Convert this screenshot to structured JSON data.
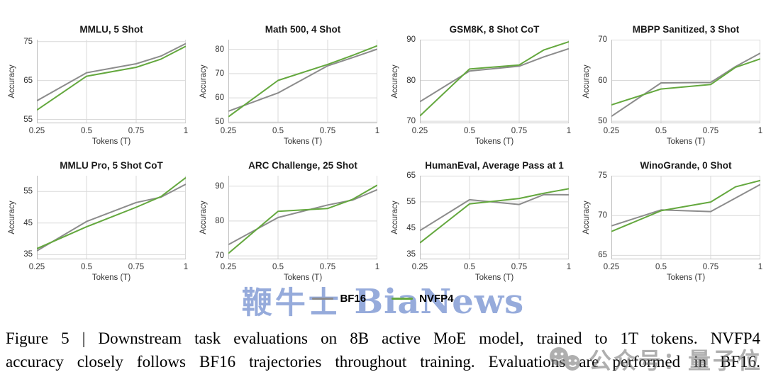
{
  "legend": {
    "items": [
      {
        "label": "BF16",
        "color": "#8c8c8c"
      },
      {
        "label": "NVFP4",
        "color": "#64a83e"
      }
    ]
  },
  "watermarks": {
    "bianews": {
      "text_cjk": "鞭牛士",
      "text_latin": "BiaNews",
      "color": "#8ba2d8"
    },
    "qbitai": {
      "text": "公众号：量子位",
      "color": "#6e6e6e",
      "icon": "wechat-smileys-icon"
    }
  },
  "caption": {
    "line1": "Figure 5 | Downstream task evaluations on 8B active MoE model, trained to 1T tokens. NVFP4",
    "line2": "accuracy closely follows BF16 trajectories throughout training. Evaluations are performed in BF16."
  },
  "chart_data": [
    {
      "type": "line",
      "title": "MMLU, 5 Shot",
      "xlabel": "Tokens (T)",
      "ylabel": "Accuracy",
      "x": [
        0.25,
        0.5,
        0.75,
        0.875,
        1
      ],
      "xlim": [
        0.25,
        1
      ],
      "xticks": [
        "0.25",
        "0.5",
        "0.75",
        "1"
      ],
      "xtick_values": [
        0.25,
        0.5,
        0.75,
        1
      ],
      "yticks": [
        55,
        65,
        75
      ],
      "ylim": [
        54,
        75.5
      ],
      "series": [
        {
          "name": "BF16",
          "color": "#8c8c8c",
          "values": [
            59.8,
            67.0,
            69.3,
            71.3,
            74.5
          ]
        },
        {
          "name": "NVFP4",
          "color": "#64a83e",
          "values": [
            57.4,
            66.1,
            68.4,
            70.5,
            73.8
          ]
        }
      ]
    },
    {
      "type": "line",
      "title": "Math 500, 4 Shot",
      "xlabel": "Tokens (T)",
      "ylabel": "Accuracy",
      "x": [
        0.25,
        0.5,
        0.75,
        0.875,
        1
      ],
      "xlim": [
        0.25,
        1
      ],
      "xticks": [
        "0.25",
        "0.5",
        "0.75",
        "1"
      ],
      "xtick_values": [
        0.25,
        0.5,
        0.75,
        1
      ],
      "yticks": [
        50,
        60,
        70,
        80
      ],
      "ylim": [
        49.5,
        84
      ],
      "series": [
        {
          "name": "BF16",
          "color": "#8c8c8c",
          "values": [
            54.5,
            62.0,
            73.2,
            76.6,
            80.1
          ]
        },
        {
          "name": "NVFP4",
          "color": "#64a83e",
          "values": [
            52.2,
            67.2,
            73.8,
            77.5,
            81.5
          ]
        }
      ]
    },
    {
      "type": "line",
      "title": "GSM8K, 8 Shot CoT",
      "xlabel": "Tokens (T)",
      "ylabel": "Accuracy",
      "x": [
        0.25,
        0.5,
        0.75,
        0.875,
        1
      ],
      "xlim": [
        0.25,
        1
      ],
      "xticks": [
        "0.25",
        "0.5",
        "0.75",
        "1"
      ],
      "xtick_values": [
        0.25,
        0.5,
        0.75,
        1
      ],
      "yticks": [
        70,
        80,
        90
      ],
      "ylim": [
        69.5,
        90
      ],
      "series": [
        {
          "name": "BF16",
          "color": "#8c8c8c",
          "values": [
            74.8,
            82.3,
            83.5,
            85.8,
            87.8
          ]
        },
        {
          "name": "NVFP4",
          "color": "#64a83e",
          "values": [
            71.3,
            82.8,
            83.8,
            87.5,
            89.5
          ]
        }
      ]
    },
    {
      "type": "line",
      "title": "MBPP Sanitized, 3 Shot",
      "xlabel": "Tokens (T)",
      "ylabel": "Accuracy",
      "x": [
        0.25,
        0.5,
        0.75,
        0.875,
        1
      ],
      "xlim": [
        0.25,
        1
      ],
      "xticks": [
        "0.25",
        "0.5",
        "0.75",
        "1"
      ],
      "xtick_values": [
        0.25,
        0.5,
        0.75,
        1
      ],
      "yticks": [
        50,
        60,
        70
      ],
      "ylim": [
        49.5,
        70
      ],
      "series": [
        {
          "name": "BF16",
          "color": "#8c8c8c",
          "values": [
            51.2,
            59.4,
            59.5,
            63.4,
            66.7
          ]
        },
        {
          "name": "NVFP4",
          "color": "#64a83e",
          "values": [
            54.0,
            57.9,
            59.0,
            63.2,
            65.3
          ]
        }
      ]
    },
    {
      "type": "line",
      "title": "MMLU Pro, 5 Shot CoT",
      "xlabel": "Tokens (T)",
      "ylabel": "Accuracy",
      "x": [
        0.25,
        0.5,
        0.75,
        0.875,
        1
      ],
      "xlim": [
        0.25,
        1
      ],
      "xticks": [
        "0.25",
        "0.5",
        "0.75",
        "1"
      ],
      "xtick_values": [
        0.25,
        0.5,
        0.75,
        1
      ],
      "yticks": [
        35,
        45,
        55
      ],
      "ylim": [
        33.5,
        60
      ],
      "series": [
        {
          "name": "BF16",
          "color": "#8c8c8c",
          "values": [
            36.2,
            45.5,
            51.5,
            53.2,
            57.3
          ]
        },
        {
          "name": "NVFP4",
          "color": "#64a83e",
          "values": [
            36.9,
            43.8,
            50.0,
            53.4,
            59.4
          ]
        }
      ]
    },
    {
      "type": "line",
      "title": "ARC Challenge, 25 Shot",
      "xlabel": "Tokens (T)",
      "ylabel": "Accuracy",
      "x": [
        0.25,
        0.5,
        0.75,
        0.875,
        1
      ],
      "xlim": [
        0.25,
        1
      ],
      "xticks": [
        "0.25",
        "0.5",
        "0.75",
        "1"
      ],
      "xtick_values": [
        0.25,
        0.5,
        0.75,
        1
      ],
      "yticks": [
        70,
        80,
        90
      ],
      "ylim": [
        69,
        93
      ],
      "series": [
        {
          "name": "BF16",
          "color": "#8c8c8c",
          "values": [
            73.2,
            81.0,
            84.6,
            86.0,
            89.0
          ]
        },
        {
          "name": "NVFP4",
          "color": "#64a83e",
          "values": [
            70.7,
            82.8,
            83.6,
            86.2,
            90.3
          ]
        }
      ]
    },
    {
      "type": "line",
      "title": "HumanEval, Average Pass at 1",
      "xlabel": "Tokens (T)",
      "ylabel": "Accuracy",
      "x": [
        0.25,
        0.5,
        0.75,
        0.875,
        1
      ],
      "xlim": [
        0.25,
        1
      ],
      "xticks": [
        "0.25",
        "0.5",
        "0.75",
        "1"
      ],
      "xtick_values": [
        0.25,
        0.5,
        0.75,
        1
      ],
      "yticks": [
        35,
        45,
        55,
        65
      ],
      "ylim": [
        33,
        65
      ],
      "series": [
        {
          "name": "BF16",
          "color": "#8c8c8c",
          "values": [
            44.0,
            55.8,
            54.0,
            57.8,
            57.7
          ]
        },
        {
          "name": "NVFP4",
          "color": "#64a83e",
          "values": [
            39.3,
            54.2,
            56.3,
            58.3,
            60.0
          ]
        }
      ]
    },
    {
      "type": "line",
      "title": "WinoGrande, 0 Shot",
      "xlabel": "Tokens (T)",
      "ylabel": "Accuracy",
      "x": [
        0.25,
        0.5,
        0.75,
        0.875,
        1
      ],
      "xlim": [
        0.25,
        1
      ],
      "xticks": [
        "0.25",
        "0.5",
        "0.75",
        "1"
      ],
      "xtick_values": [
        0.25,
        0.5,
        0.75,
        1
      ],
      "yticks": [
        65,
        70,
        75
      ],
      "ylim": [
        64.5,
        75
      ],
      "series": [
        {
          "name": "BF16",
          "color": "#8c8c8c",
          "values": [
            68.7,
            70.7,
            70.5,
            72.2,
            73.9
          ]
        },
        {
          "name": "NVFP4",
          "color": "#64a83e",
          "values": [
            68.0,
            70.6,
            71.7,
            73.6,
            74.4
          ]
        }
      ]
    }
  ]
}
